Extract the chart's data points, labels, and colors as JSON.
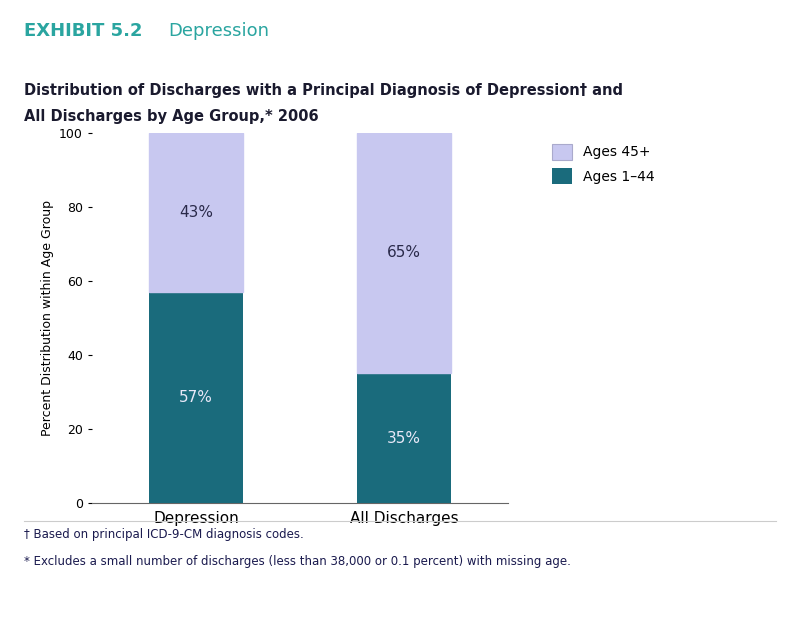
{
  "exhibit_label": "EXHIBIT 5.2",
  "exhibit_title": "Depression",
  "chart_title_line1": "Distribution of Discharges with a Principal Diagnosis of Depression† and",
  "chart_title_line2": "All Discharges by Age Group,* 2006",
  "categories": [
    "Depression",
    "All Discharges"
  ],
  "ages_1_44_values": [
    57,
    35
  ],
  "ages_45plus_values": [
    43,
    65
  ],
  "ages_1_44_color": "#1a6b7c",
  "ages_45plus_color": "#c8c8f0",
  "ages_1_44_label": "Ages 1–44",
  "ages_45plus_label": "Ages 45+",
  "ylabel": "Percent Distribution within Age Group",
  "ylim": [
    0,
    100
  ],
  "yticks": [
    0,
    20,
    40,
    60,
    80,
    100
  ],
  "footnote1": "† Based on principal ICD-9-CM diagnosis codes.",
  "footnote2": "* Excludes a small number of discharges (less than 38,000 or 0.1 percent) with missing age.",
  "exhibit_label_color": "#2aa5a0",
  "footnote_color": "#1a1a4e",
  "title_color": "#1a1a2e",
  "bar_width": 0.45,
  "label_fontsize": 11,
  "pct_fontsize": 11,
  "pct_color_dark": "#e8e8f8",
  "pct_color_light": "#2a2a4a"
}
